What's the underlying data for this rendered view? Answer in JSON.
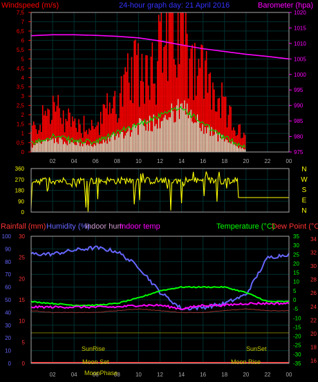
{
  "panel1": {
    "title_left": "Windspeed (m/s)",
    "title_center": "24-hour graph day:  21 April 2016",
    "title_right": "Barometer (hpa)",
    "left_ticks": [
      "7,5",
      "7",
      "6,5",
      "6",
      "5,5",
      "5",
      "4,5",
      "4",
      "3,5",
      "3",
      "2,5",
      "2",
      "1,5",
      "1",
      "0,5",
      "0"
    ],
    "right_ticks": [
      "1020",
      "1015",
      "1010",
      "1005",
      "1000",
      "995",
      "990",
      "985",
      "980",
      "975"
    ]
  },
  "panel2": {
    "left_ticks": [
      "360",
      "270",
      "180",
      "90",
      "0"
    ],
    "compass": [
      "N",
      "W",
      "S",
      "E",
      "N"
    ]
  },
  "panel3": {
    "label_rain": "Rainfall (mm)",
    "label_humidity": "Humidity (%)",
    "label_indoor_hum": "Indoor hum",
    "label_indoor_temp": "Indoor temp",
    "label_temperature": "Temperature (°C)",
    "label_dewpoint": "Dew Point (°C)",
    "hum_ticks": [
      "100",
      "90",
      "80",
      "70",
      "60",
      "50",
      "40",
      "30",
      "20",
      "10",
      "0"
    ],
    "rain_ticks": [
      "30",
      "25",
      "20",
      "15",
      "10",
      "5",
      "0"
    ],
    "temp_ticks": [
      "35",
      "30",
      "25",
      "20",
      "15",
      "10",
      "5",
      "0",
      "-5",
      "-10",
      "-15",
      "-20",
      "-25",
      "-30",
      "-35"
    ],
    "dew_ticks": [
      "34",
      "32",
      "30",
      "28",
      "26",
      "24",
      "22",
      "20",
      "18",
      "16"
    ],
    "sunrise": "SunRise",
    "sunset": "SunSet",
    "moonset": "Moon Set",
    "moonrise": "Moon Rise",
    "moonphase": "MoonPhase"
  },
  "x_ticks": [
    "02",
    "04",
    "06",
    "08",
    "10",
    "12",
    "14",
    "16",
    "18",
    "20",
    "22",
    "00"
  ],
  "colors": {
    "wind": "#ff0000",
    "gust": "#ffffff",
    "avg": "#00cc00",
    "barometer": "#ff00ff",
    "direction": "#ffff00",
    "humidity": "#6666ff",
    "temperature": "#00ff00",
    "dewpoint": "#ff00ff",
    "indoor_temp": "#993333",
    "grid": "#003030",
    "frame": "#aaaaaa"
  },
  "chart_data": [
    {
      "type": "line",
      "title": "24-hour graph day:  21 April 2016",
      "x": [
        "00",
        "02",
        "04",
        "06",
        "08",
        "10",
        "12",
        "14",
        "16",
        "18",
        "20",
        "22",
        "00"
      ],
      "series": [
        {
          "name": "Windspeed (m/s)",
          "values": [
            0.3,
            0.8,
            0.5,
            0.4,
            1.0,
            1.5,
            2.0,
            2.5,
            1.5,
            0.7,
            0.1,
            0.0,
            0.0
          ]
        },
        {
          "name": "Barometer (hpa)",
          "values": [
            1012.5,
            1012.8,
            1012.8,
            1012.6,
            1012.3,
            1011.8,
            1010.8,
            1009.5,
            1008.3,
            1007.4,
            1006.5,
            1005.8,
            1005.0
          ]
        }
      ],
      "ylim_left": [
        0,
        7.5
      ],
      "ylim_right": [
        975,
        1020
      ]
    },
    {
      "type": "line",
      "x": [
        "00",
        "02",
        "04",
        "06",
        "08",
        "10",
        "12",
        "14",
        "16",
        "18",
        "19",
        "20",
        "22",
        "00"
      ],
      "series": [
        {
          "name": "Wind direction",
          "values": [
            270,
            290,
            280,
            270,
            260,
            250,
            240,
            230,
            220,
            240,
            200,
            120,
            120,
            120
          ]
        }
      ],
      "ylim": [
        0,
        360
      ]
    },
    {
      "type": "line",
      "x": [
        "00",
        "02",
        "04",
        "06",
        "08",
        "10",
        "12",
        "14",
        "16",
        "18",
        "20",
        "22",
        "00"
      ],
      "series": [
        {
          "name": "Humidity (%)",
          "values": [
            86,
            86,
            89,
            91,
            88,
            76,
            56,
            43,
            44,
            47,
            54,
            83,
            86
          ]
        },
        {
          "name": "Temperature (°C)",
          "values": [
            -1,
            -2,
            -3,
            -3,
            -2,
            1,
            5,
            7,
            7,
            7,
            4,
            -1,
            -1
          ]
        },
        {
          "name": "Dew Point (°C)",
          "values": [
            -4,
            -4,
            -4,
            -4,
            -4,
            -3,
            -3,
            -5,
            -3,
            -3,
            -2,
            -2,
            -2
          ]
        }
      ],
      "ylim_humidity": [
        0,
        100
      ],
      "ylim_temperature": [
        -35,
        35
      ]
    }
  ]
}
